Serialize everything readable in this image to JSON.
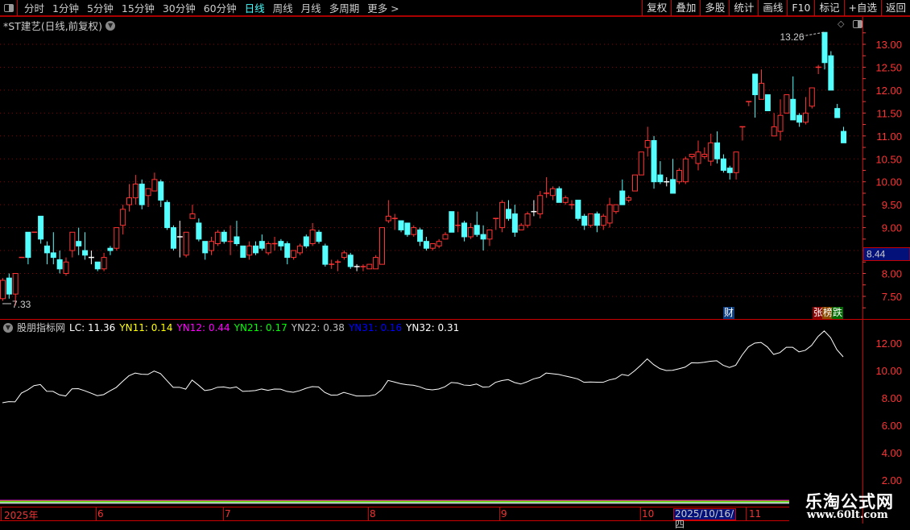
{
  "toolbar": {
    "periods": [
      "分时",
      "1分钟",
      "5分钟",
      "15分钟",
      "30分钟",
      "60分钟",
      "日线",
      "周线",
      "月线",
      "多周期",
      "更多 >"
    ],
    "active": "日线",
    "buttons": [
      "复权",
      "叠加",
      "多股",
      "统计",
      "画线",
      "F10",
      "标记",
      "+自选",
      "返回"
    ]
  },
  "chart_title": "*ST建艺(日线,前复权)",
  "indicator": {
    "name": "股朋指标网",
    "values": [
      {
        "label": "LC: 11.36",
        "color": "#ffffff"
      },
      {
        "label": "YN11: 0.14",
        "color": "#ffff00"
      },
      {
        "label": "YN12: 0.44",
        "color": "#ff00ff"
      },
      {
        "label": "YN21: 0.17",
        "color": "#00ff00"
      },
      {
        "label": "YN22: 0.38",
        "color": "#c0c0c0"
      },
      {
        "label": "YN31: 0.16",
        "color": "#0000ff"
      },
      {
        "label": "YN32: 0.31",
        "color": "#ffffff"
      }
    ]
  },
  "price_axis": {
    "ticks": [
      "13.00",
      "12.50",
      "12.00",
      "11.50",
      "11.00",
      "10.50",
      "10.00",
      "9.50",
      "9.00",
      "8.00",
      "7.50"
    ],
    "current": "8.44"
  },
  "lower_axis": {
    "ticks": [
      "12.00",
      "10.00",
      "8.00",
      "6.00",
      "4.00",
      "2.00"
    ]
  },
  "annotations": {
    "high": "13.26",
    "low": "7.33"
  },
  "badges": {
    "cai": "财",
    "zhang": "张",
    "bang": "榜",
    "die": "跌"
  },
  "date_axis": {
    "labels": [
      "2025年",
      "6",
      "7",
      "8",
      "9",
      "10",
      "11"
    ],
    "current": "2025/10/16/四"
  },
  "watermark": {
    "name": "乐淘公式网",
    "url": "www.60lt.com"
  },
  "colors": {
    "up": "#ff3333",
    "down": "#54ffff",
    "grid": "#8b0000",
    "axis": "#ff3333",
    "active": "#4ff"
  },
  "chart_data": {
    "type": "candlestick",
    "ylim": [
      7.2,
      13.4
    ],
    "lower_ylim": [
      1,
      13
    ],
    "ohlc": [
      [
        7.45,
        7.9,
        7.4,
        7.85
      ],
      [
        7.9,
        8.0,
        7.45,
        7.55
      ],
      [
        7.55,
        8.0,
        7.3,
        8.0
      ],
      [
        8.35,
        8.35,
        8.35,
        8.35
      ],
      [
        8.9,
        8.9,
        8.2,
        8.35
      ],
      [
        8.9,
        8.9,
        8.9,
        8.9
      ],
      [
        9.25,
        9.25,
        8.65,
        8.75
      ],
      [
        8.6,
        8.7,
        8.2,
        8.45
      ],
      [
        8.45,
        8.9,
        8.2,
        8.35
      ],
      [
        8.3,
        8.5,
        8.0,
        8.1
      ],
      [
        8.0,
        8.35,
        7.95,
        8.25
      ],
      [
        8.5,
        8.9,
        8.35,
        8.9
      ],
      [
        8.7,
        9.0,
        8.4,
        8.6
      ],
      [
        8.5,
        8.9,
        8.3,
        8.4
      ],
      [
        8.35,
        8.5,
        8.2,
        8.35
      ],
      [
        8.25,
        8.25,
        8.05,
        8.1
      ],
      [
        8.1,
        8.45,
        8.05,
        8.35
      ],
      [
        8.55,
        8.6,
        8.4,
        8.5
      ],
      [
        8.55,
        9.0,
        8.5,
        9.0
      ],
      [
        9.05,
        9.5,
        8.85,
        9.4
      ],
      [
        9.5,
        9.95,
        9.35,
        9.65
      ],
      [
        9.65,
        10.15,
        9.5,
        9.95
      ],
      [
        9.95,
        10.05,
        9.4,
        9.5
      ],
      [
        9.7,
        9.85,
        9.45,
        9.85
      ],
      [
        9.8,
        10.2,
        9.8,
        10.05
      ],
      [
        10.0,
        10.05,
        9.45,
        9.6
      ],
      [
        9.55,
        9.6,
        8.95,
        9.0
      ],
      [
        9.0,
        9.05,
        8.5,
        8.55
      ],
      [
        8.8,
        9.15,
        8.35,
        8.8
      ],
      [
        8.4,
        8.9,
        8.35,
        8.9
      ],
      [
        9.2,
        9.5,
        9.2,
        9.3
      ],
      [
        9.1,
        9.2,
        8.7,
        8.75
      ],
      [
        8.7,
        8.7,
        8.3,
        8.45
      ],
      [
        8.5,
        8.8,
        8.4,
        8.7
      ],
      [
        8.65,
        8.95,
        8.6,
        8.9
      ],
      [
        8.9,
        8.95,
        8.65,
        8.7
      ],
      [
        8.7,
        9.05,
        8.4,
        8.7
      ],
      [
        8.8,
        9.15,
        8.6,
        8.65
      ],
      [
        8.6,
        8.6,
        8.35,
        8.35
      ],
      [
        8.4,
        8.7,
        8.3,
        8.6
      ],
      [
        8.6,
        8.7,
        8.4,
        8.45
      ],
      [
        8.7,
        8.85,
        8.5,
        8.55
      ],
      [
        8.45,
        8.7,
        8.4,
        8.65
      ],
      [
        8.65,
        8.8,
        8.5,
        8.65
      ],
      [
        8.7,
        8.75,
        8.5,
        8.6
      ],
      [
        8.65,
        8.7,
        8.2,
        8.35
      ],
      [
        8.35,
        8.5,
        8.3,
        8.5
      ],
      [
        8.45,
        8.65,
        8.4,
        8.6
      ],
      [
        8.8,
        8.85,
        8.55,
        8.6
      ],
      [
        8.65,
        9.1,
        8.6,
        8.95
      ],
      [
        8.9,
        8.95,
        8.65,
        8.7
      ],
      [
        8.6,
        8.65,
        8.15,
        8.2
      ],
      [
        8.2,
        8.3,
        8.1,
        8.2
      ],
      [
        8.25,
        8.3,
        8.05,
        8.25
      ],
      [
        8.35,
        8.5,
        8.3,
        8.45
      ],
      [
        8.4,
        8.45,
        8.1,
        8.15
      ],
      [
        8.15,
        8.2,
        8.05,
        8.15
      ],
      [
        8.15,
        8.2,
        8.05,
        8.15
      ],
      [
        8.1,
        8.2,
        8.1,
        8.2
      ],
      [
        8.1,
        8.4,
        8.1,
        8.35
      ],
      [
        8.2,
        9.0,
        8.2,
        9.0
      ],
      [
        9.15,
        9.6,
        9.1,
        9.25
      ],
      [
        9.2,
        9.3,
        8.95,
        9.2
      ],
      [
        9.15,
        9.15,
        8.9,
        8.95
      ],
      [
        9.1,
        9.1,
        8.8,
        8.85
      ],
      [
        8.85,
        9.05,
        8.8,
        9.0
      ],
      [
        8.95,
        9.0,
        8.6,
        8.7
      ],
      [
        8.7,
        8.8,
        8.5,
        8.55
      ],
      [
        8.55,
        8.65,
        8.5,
        8.65
      ],
      [
        8.6,
        8.75,
        8.55,
        8.7
      ],
      [
        8.75,
        8.9,
        8.75,
        8.85
      ],
      [
        9.35,
        9.35,
        8.9,
        8.9
      ],
      [
        9.05,
        9.35,
        8.9,
        9.05
      ],
      [
        9.1,
        9.15,
        8.7,
        8.8
      ],
      [
        8.8,
        9.1,
        8.75,
        9.0
      ],
      [
        9.05,
        9.35,
        8.8,
        8.85
      ],
      [
        8.85,
        9.05,
        8.5,
        8.75
      ],
      [
        8.75,
        8.95,
        8.6,
        8.95
      ],
      [
        9.2,
        9.2,
        8.95,
        9.2
      ],
      [
        9.0,
        9.6,
        8.9,
        9.55
      ],
      [
        9.4,
        9.6,
        9.15,
        9.2
      ],
      [
        9.3,
        9.5,
        8.8,
        8.9
      ],
      [
        8.95,
        9.1,
        8.95,
        9.05
      ],
      [
        9.05,
        9.35,
        9.0,
        9.3
      ],
      [
        9.35,
        9.6,
        9.25,
        9.35
      ],
      [
        9.3,
        9.8,
        9.2,
        9.7
      ],
      [
        9.75,
        10.1,
        9.65,
        9.75
      ],
      [
        9.7,
        9.9,
        9.6,
        9.85
      ],
      [
        9.85,
        9.9,
        9.55,
        9.55
      ],
      [
        9.55,
        9.7,
        9.5,
        9.65
      ],
      [
        9.5,
        9.6,
        9.4,
        9.5
      ],
      [
        9.6,
        9.6,
        9.15,
        9.2
      ],
      [
        9.25,
        9.3,
        8.95,
        9.05
      ],
      [
        9.05,
        9.3,
        9.0,
        9.3
      ],
      [
        9.3,
        9.35,
        8.9,
        9.05
      ],
      [
        9.05,
        9.3,
        8.95,
        9.25
      ],
      [
        9.1,
        9.65,
        9.0,
        9.5
      ],
      [
        9.35,
        9.5,
        9.3,
        9.5
      ],
      [
        9.8,
        10.05,
        9.5,
        9.5
      ],
      [
        9.6,
        9.7,
        9.55,
        9.65
      ],
      [
        9.8,
        10.15,
        9.8,
        10.15
      ],
      [
        10.15,
        10.65,
        10.15,
        10.65
      ],
      [
        10.75,
        11.2,
        10.55,
        10.9
      ],
      [
        10.9,
        11.0,
        9.85,
        10.0
      ],
      [
        10.15,
        10.45,
        9.95,
        10.0
      ],
      [
        10.0,
        10.1,
        9.9,
        10.0
      ],
      [
        10.05,
        10.5,
        9.75,
        9.75
      ],
      [
        10.0,
        10.3,
        9.95,
        10.25
      ],
      [
        10.0,
        10.55,
        9.95,
        10.5
      ],
      [
        10.55,
        10.6,
        10.5,
        10.6
      ],
      [
        10.4,
        10.9,
        10.25,
        10.65
      ],
      [
        10.55,
        10.75,
        10.5,
        10.6
      ],
      [
        10.45,
        11.05,
        10.35,
        10.85
      ],
      [
        10.85,
        11.1,
        10.4,
        10.5
      ],
      [
        10.5,
        10.6,
        10.2,
        10.25
      ],
      [
        10.3,
        10.35,
        10.05,
        10.2
      ],
      [
        10.2,
        10.65,
        10.05,
        10.65
      ],
      [
        11.2,
        11.2,
        10.9,
        11.2
      ],
      [
        11.75,
        11.75,
        11.65,
        11.75
      ],
      [
        12.35,
        12.35,
        11.4,
        11.9
      ],
      [
        11.8,
        12.45,
        11.8,
        12.15
      ],
      [
        11.9,
        11.9,
        11.55,
        11.55
      ],
      [
        11.0,
        11.5,
        11.0,
        11.2
      ],
      [
        11.1,
        11.8,
        10.9,
        11.45
      ],
      [
        11.5,
        11.9,
        11.5,
        11.9
      ],
      [
        11.8,
        12.3,
        11.35,
        11.35
      ],
      [
        11.45,
        11.5,
        11.2,
        11.3
      ],
      [
        11.3,
        11.85,
        11.25,
        11.5
      ],
      [
        11.65,
        12.05,
        11.6,
        12.05
      ],
      [
        12.5,
        12.55,
        12.35,
        12.5
      ],
      [
        13.26,
        13.26,
        12.45,
        12.6
      ],
      [
        12.75,
        12.85,
        12.0,
        12.0
      ],
      [
        11.6,
        11.7,
        11.4,
        11.4
      ],
      [
        11.1,
        11.2,
        10.85,
        10.85
      ]
    ]
  }
}
